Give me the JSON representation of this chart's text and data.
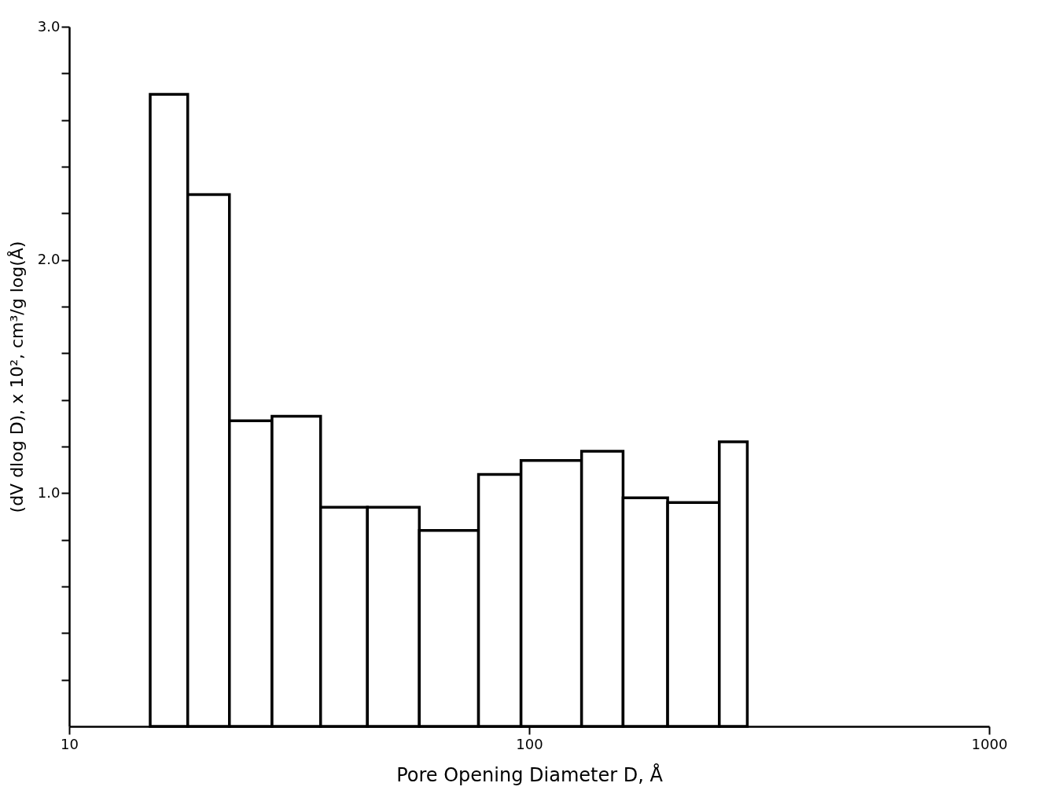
{
  "chart_data": {
    "type": "histogram",
    "xlabel": "Pore  Opening  Diameter  D, Å",
    "ylabel": "(dV dlog D), x 10², cm³/g log(Å)",
    "bins": [
      15,
      18.1,
      22.3,
      27.6,
      35.2,
      44.5,
      57.7,
      77.6,
      96,
      130,
      160,
      200,
      259,
      298
    ],
    "values": [
      2.71,
      2.28,
      1.31,
      1.33,
      0.94,
      0.94,
      0.84,
      1.08,
      1.14,
      1.18,
      0.98,
      0.96,
      1.22
    ],
    "color": "#000000",
    "log": "x",
    "grid": false,
    "xlim": [
      10,
      1000
    ],
    "xticks": [
      10,
      100,
      1000
    ],
    "ylim": [
      0,
      3
    ],
    "yticks": [
      {
        "value": 0.2,
        "label": null
      },
      {
        "value": 0.4,
        "label": null
      },
      {
        "value": 0.6,
        "label": null
      },
      {
        "value": 0.8,
        "label": null
      },
      {
        "value": 1,
        "label": "1.0"
      },
      {
        "value": 1.2,
        "label": null
      },
      {
        "value": 1.4,
        "label": null
      },
      {
        "value": 1.6,
        "label": null
      },
      {
        "value": 1.8,
        "label": null
      },
      {
        "value": 2,
        "label": "2.0"
      },
      {
        "value": 2.2,
        "label": null
      },
      {
        "value": 2.4,
        "label": null
      },
      {
        "value": 2.6,
        "label": null
      },
      {
        "value": 2.8,
        "label": null
      },
      {
        "value": 3,
        "label": "3.0"
      }
    ]
  }
}
